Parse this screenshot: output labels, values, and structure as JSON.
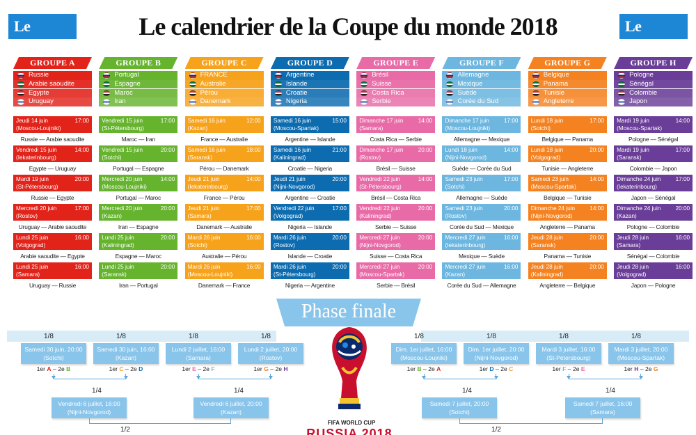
{
  "header": {
    "logo": "Le Parisien",
    "title": "Le calendrier de la Coupe du monde 2018"
  },
  "colors": {
    "A": "#e2231a",
    "B": "#66b32e",
    "C": "#f7a21b",
    "D": "#0d6cb0",
    "E": "#e86aa6",
    "F": "#6cb6e0",
    "G": "#f58220",
    "H": "#6a3d98"
  },
  "groups": [
    {
      "name": "GROUPE A",
      "teams": [
        "Russie",
        "Arabie saoudite",
        "Egypte",
        "Uruguay"
      ],
      "matches": [
        {
          "date": "Jeudi 14 juin",
          "time": "17:00",
          "venue": "(Moscou-Loujniki)",
          "teams": "Russie — Arabie saoudite"
        },
        {
          "date": "Vendredi 15 juin",
          "time": "14:00",
          "venue": "(Iekaterinbourg)",
          "teams": "Egypte — Uruguay"
        },
        {
          "date": "Mardi 19 juin",
          "time": "20:00",
          "venue": "(St-Pétersbourg)",
          "teams": "Russie — Egypte"
        },
        {
          "date": "Mercredi 20 juin",
          "time": "17:00",
          "venue": "(Rostov)",
          "teams": "Uruguay — Arabie saoudite"
        },
        {
          "date": "Lundi 25 juin",
          "time": "16:00",
          "venue": "(Volgograd)",
          "teams": "Arabie saoudite — Egypte"
        },
        {
          "date": "Lundi 25 juin",
          "time": "16:00",
          "venue": "(Samara)",
          "teams": "Uruguay — Russie"
        }
      ]
    },
    {
      "name": "GROUPE B",
      "teams": [
        "Portugal",
        "Espagne",
        "Maroc",
        "Iran"
      ],
      "matches": [
        {
          "date": "Vendredi 15 juin",
          "time": "17:00",
          "venue": "(St-Pétersbourg)",
          "teams": "Maroc — Iran"
        },
        {
          "date": "Vendredi 15 juin",
          "time": "20:00",
          "venue": "(Sotchi)",
          "teams": "Portugal — Espagne"
        },
        {
          "date": "Mercredi 20 juin",
          "time": "14:00",
          "venue": "(Moscou-Loujniki)",
          "teams": "Portugal — Maroc"
        },
        {
          "date": "Mercredi 20 juin",
          "time": "20:00",
          "venue": "(Kazan)",
          "teams": "Iran — Espagne"
        },
        {
          "date": "Lundi 25 juin",
          "time": "20:00",
          "venue": "(Kaliningrad)",
          "teams": "Espagne — Maroc"
        },
        {
          "date": "Lundi 25 juin",
          "time": "20:00",
          "venue": "(Saransk)",
          "teams": "Iran — Portugal"
        }
      ]
    },
    {
      "name": "GROUPE C",
      "teams": [
        "FRANCE",
        "Australie",
        "Pérou",
        "Danemark"
      ],
      "matches": [
        {
          "date": "Samedi 16 juin",
          "time": "12:00",
          "venue": "(Kazan)",
          "teams": "France — Australie"
        },
        {
          "date": "Samedi 16 juin",
          "time": "18:00",
          "venue": "(Saransk)",
          "teams": "Pérou — Danemark"
        },
        {
          "date": "Jeudi 21 juin",
          "time": "14:00",
          "venue": "(Iekaterinbourg)",
          "teams": "France — Pérou"
        },
        {
          "date": "Jeudi 21 juin",
          "time": "17:00",
          "venue": "(Samara)",
          "teams": "Danemark — Australie"
        },
        {
          "date": "Mardi 26 juin",
          "time": "16:00",
          "venue": "(Sotchi)",
          "teams": "Australie — Pérou"
        },
        {
          "date": "Mardi 26 juin",
          "time": "16:00",
          "venue": "(Moscou-Loujniki)",
          "teams": "Danemark — France"
        }
      ]
    },
    {
      "name": "GROUPE D",
      "teams": [
        "Argentine",
        "Islande",
        "Croatie",
        "Nigeria"
      ],
      "matches": [
        {
          "date": "Samedi 16 juin",
          "time": "15:00",
          "venue": "(Moscou-Spartak)",
          "teams": "Argentine — Islande"
        },
        {
          "date": "Samedi 16 juin",
          "time": "21:00",
          "venue": "(Kaliningrad)",
          "teams": "Croatie — Nigeria"
        },
        {
          "date": "Jeudi 21 juin",
          "time": "20:00",
          "venue": "(Nijni-Novgorod)",
          "teams": "Argentine — Croatie"
        },
        {
          "date": "Vendredi 22 juin",
          "time": "17:00",
          "venue": "(Volgograd)",
          "teams": "Nigeria — Islande"
        },
        {
          "date": "Mardi 26 juin",
          "time": "20:00",
          "venue": "(Rostov)",
          "teams": "Islande — Croatie"
        },
        {
          "date": "Mardi 26 juin",
          "time": "20:00",
          "venue": "(St-Pétersbourg)",
          "teams": "Nigeria — Argentine"
        }
      ]
    },
    {
      "name": "GROUPE E",
      "teams": [
        "Brésil",
        "Suisse",
        "Costa Rica",
        "Serbie"
      ],
      "matches": [
        {
          "date": "Dimanche 17 juin",
          "time": "14:00",
          "venue": "(Samara)",
          "teams": "Costa Rica — Serbie"
        },
        {
          "date": "Dimanche 17 juin",
          "time": "20:00",
          "venue": "(Rostov)",
          "teams": "Brésil — Suisse"
        },
        {
          "date": "Vendredi 22 juin",
          "time": "14:00",
          "venue": "(St-Pétersbourg)",
          "teams": "Brésil — Costa Rica"
        },
        {
          "date": "Vendredi 22 juin",
          "time": "20:00",
          "venue": "(Kaliningrad)",
          "teams": "Serbie — Suisse"
        },
        {
          "date": "Mercredi 27 juin",
          "time": "20:00",
          "venue": "(Nijni-Novgorod)",
          "teams": "Suisse — Costa Rica"
        },
        {
          "date": "Mercredi 27 juin",
          "time": "20:00",
          "venue": "(Moscou-Spartak)",
          "teams": "Serbie — Brésil"
        }
      ]
    },
    {
      "name": "GROUPE F",
      "teams": [
        "Allemagne",
        "Mexique",
        "Suède",
        "Corée du Sud"
      ],
      "matches": [
        {
          "date": "Dimanche 17 juin",
          "time": "17:00",
          "venue": "(Moscou-Loujniki)",
          "teams": "Allemagne — Mexique"
        },
        {
          "date": "Lundi 18 juin",
          "time": "14:00",
          "venue": "(Nijni-Novgorod)",
          "teams": "Suède — Corée du Sud"
        },
        {
          "date": "Samedi 23 juin",
          "time": "17:00",
          "venue": "(Sotchi)",
          "teams": "Allemagne — Suède"
        },
        {
          "date": "Samedi 23 juin",
          "time": "20:00",
          "venue": "(Rostov)",
          "teams": "Corée du Sud — Mexique"
        },
        {
          "date": "Mercredi 27 juin",
          "time": "16:00",
          "venue": "(Iekaterinbourg)",
          "teams": "Mexique — Suède"
        },
        {
          "date": "Mercredi 27 juin",
          "time": "16:00",
          "venue": "(Kazan)",
          "teams": "Corée du Sud — Allemagne"
        }
      ]
    },
    {
      "name": "GROUPE G",
      "teams": [
        "Belgique",
        "Panama",
        "Tunisie",
        "Angleterre"
      ],
      "matches": [
        {
          "date": "Lundi 18 juin",
          "time": "17:00",
          "venue": "(Sotchi)",
          "teams": "Belgique — Panama"
        },
        {
          "date": "Lundi 18 juin",
          "time": "20:00",
          "venue": "(Volgograd)",
          "teams": "Tunisie — Angleterre"
        },
        {
          "date": "Samedi 23 juin",
          "time": "14:00",
          "venue": "(Moscou-Spartak)",
          "teams": "Belgique — Tunisie"
        },
        {
          "date": "Dimanche 24 juin",
          "time": "14:00",
          "venue": "(Nijni-Novgorod)",
          "teams": "Angleterre — Panama"
        },
        {
          "date": "Jeudi 28 juin",
          "time": "20:00",
          "venue": "(Saransk)",
          "teams": "Panama — Tunisie"
        },
        {
          "date": "Jeudi 28 juin",
          "time": "20:00",
          "venue": "(Kaliningrad)",
          "teams": "Angleterre — Belgique"
        }
      ]
    },
    {
      "name": "GROUPE H",
      "teams": [
        "Pologne",
        "Sénégal",
        "Colombie",
        "Japon"
      ],
      "matches": [
        {
          "date": "Mardi 19 juin",
          "time": "14:00",
          "venue": "(Moscou-Spartak)",
          "teams": "Pologne — Sénégal"
        },
        {
          "date": "Mardi 19 juin",
          "time": "17:00",
          "venue": "(Saransk)",
          "teams": "Colombie — Japon"
        },
        {
          "date": "Dimanche 24 juin",
          "time": "17:00",
          "venue": "(Iekaterinbourg)",
          "teams": "Japon — Sénégal"
        },
        {
          "date": "Dimanche 24 juin",
          "time": "20:00",
          "venue": "(Kazan)",
          "teams": "Pologne — Colombie"
        },
        {
          "date": "Jeudi 28 juin",
          "time": "16:00",
          "venue": "(Samara)",
          "teams": "Sénégal — Colombie"
        },
        {
          "date": "Jeudi 28 juin",
          "time": "16:00",
          "venue": "(Volgograd)",
          "teams": "Japon — Pologne"
        }
      ]
    }
  ],
  "phase_finale": {
    "title": "Phase finale",
    "eighth_label": "1/8",
    "quarter_label": "1/4",
    "semi_label": "1/2",
    "eighths": [
      {
        "date": "Samedi 30 juin, 20:00",
        "venue": "(Sotchi)",
        "pair": [
          "1er",
          "A",
          "2e",
          "B"
        ]
      },
      {
        "date": "Samedi 30 juin, 16:00",
        "venue": "(Kazan)",
        "pair": [
          "1er",
          "C",
          "2e",
          "D"
        ]
      },
      {
        "date": "Lundi 2 juillet, 16:00",
        "venue": "(Samara)",
        "pair": [
          "1er",
          "E",
          "2e",
          "F"
        ]
      },
      {
        "date": "Lundi 2 juillet, 20:00",
        "venue": "(Rostov)",
        "pair": [
          "1er",
          "G",
          "2e",
          "H"
        ]
      },
      {
        "date": "Dim. 1er juillet, 16:00",
        "venue": "(Moscou-Loujniki)",
        "pair": [
          "1er",
          "B",
          "2e",
          "A"
        ]
      },
      {
        "date": "Dim. 1er juillet, 20:00",
        "venue": "(Nijni-Novgorod)",
        "pair": [
          "1er",
          "D",
          "2e",
          "C"
        ]
      },
      {
        "date": "Mardi 3 juillet, 16:00",
        "venue": "(St-Pétersbourg)",
        "pair": [
          "1er",
          "F",
          "2e",
          "E"
        ]
      },
      {
        "date": "Mardi 3 juillet, 20:00",
        "venue": "(Moscou-Spartak)",
        "pair": [
          "1er",
          "H",
          "2e",
          "G"
        ]
      }
    ],
    "quarters": [
      {
        "date": "Vendredi 6 juillet, 16:00",
        "venue": "(Nijni-Novgorod)"
      },
      {
        "date": "Vendredi 6 juillet, 20:00",
        "venue": "(Kazan)"
      },
      {
        "date": "Samedi 7 juillet, 20:00",
        "venue": "(Sotchi)"
      },
      {
        "date": "Samedi 7 juillet, 16:00",
        "venue": "(Samara)"
      }
    ],
    "logo_line1": "FIFA WORLD CUP",
    "logo_line2": "RUSSIA 2018"
  }
}
